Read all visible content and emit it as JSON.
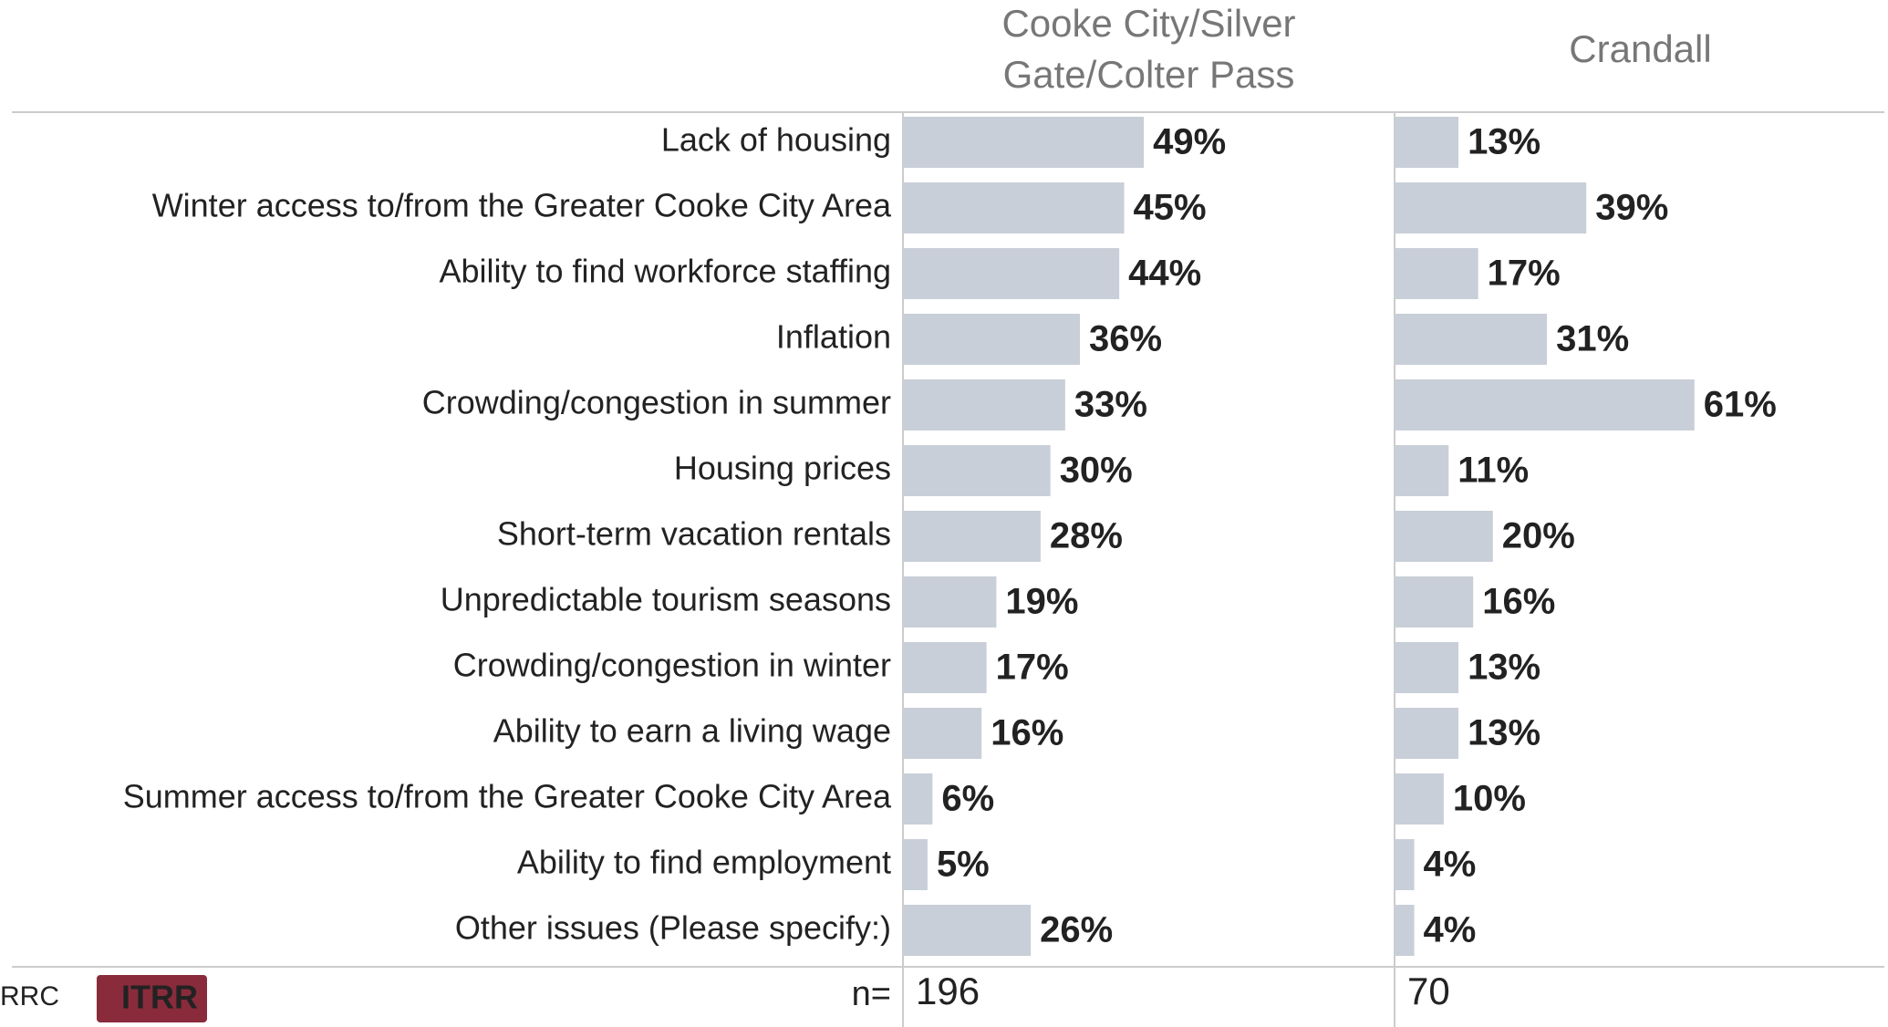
{
  "chart_data": {
    "type": "bar",
    "orientation": "horizontal",
    "categories": [
      "Lack of housing",
      "Winter access to/from the Greater Cooke City Area",
      "Ability to find workforce staffing",
      "Inflation",
      "Crowding/congestion in summer",
      "Housing prices",
      "Short-term vacation rentals",
      "Unpredictable tourism seasons",
      "Crowding/congestion in winter",
      "Ability to earn a living wage",
      "Summer access to/from the Greater Cooke City Area",
      "Ability to find employment",
      "Other issues (Please specify:)"
    ],
    "xlim": [
      0,
      100
    ],
    "n_label": "n=",
    "series": [
      {
        "name": "Cooke City/Silver Gate/Colter Pass",
        "color": "#c9cfd8",
        "values": [
          49,
          45,
          44,
          36,
          33,
          30,
          28,
          19,
          17,
          16,
          6,
          5,
          26
        ],
        "value_labels": [
          "49%",
          "45%",
          "44%",
          "36%",
          "33%",
          "30%",
          "28%",
          "19%",
          "17%",
          "16%",
          "6%",
          "5%",
          "26%"
        ],
        "n": 196
      },
      {
        "name": "Crandall",
        "color": "#c9cfd8",
        "values": [
          13,
          39,
          17,
          31,
          61,
          11,
          20,
          16,
          13,
          13,
          10,
          4,
          4
        ],
        "value_labels": [
          "13%",
          "39%",
          "17%",
          "31%",
          "61%",
          "11%",
          "20%",
          "16%",
          "13%",
          "13%",
          "10%",
          "4%",
          "4%"
        ],
        "n": 70
      }
    ]
  },
  "footer": {
    "left_text": "RRC",
    "logo_text": "ITRR"
  }
}
